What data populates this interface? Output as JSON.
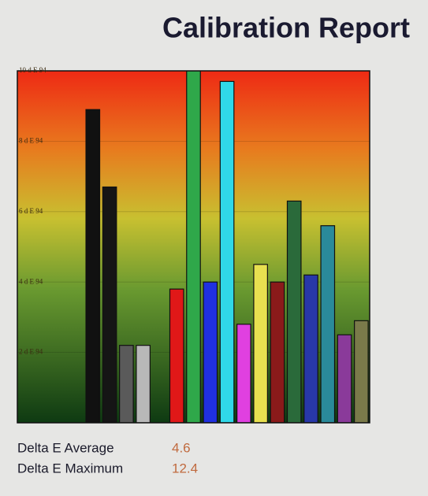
{
  "chart_data": {
    "type": "bar",
    "title": "Calibration Report",
    "categories": [
      null,
      null,
      null,
      null,
      null,
      null,
      null,
      null,
      null,
      null,
      null,
      null,
      null,
      null,
      null,
      null,
      null,
      null,
      null,
      null,
      null
    ],
    "values": [
      null,
      null,
      null,
      null,
      8.9,
      6.7,
      2.2,
      2.2,
      null,
      3.8,
      10,
      4.0,
      9.7,
      2.8,
      4.5,
      4.0,
      6.3,
      4.2,
      5.6,
      2.5,
      2.9
    ],
    "colors": [
      null,
      null,
      null,
      null,
      "#111111",
      "#151515",
      "#5a5a5a",
      "#b8b8b8",
      null,
      "#e01818",
      "#2fa84a",
      "#2030e0",
      "#30d8e8",
      "#e040e0",
      "#e8e050",
      "#8a1a1a",
      "#2a6a3a",
      "#2838a8",
      "#2a8a9a",
      "#8a3a9a",
      "#7a7a4a"
    ],
    "ylim": [
      0,
      10
    ],
    "yticks": [
      {
        "value": 2,
        "label": "2 d E 94"
      },
      {
        "value": 4,
        "label": "4 d E 94"
      },
      {
        "value": 6,
        "label": "6 d E 94"
      },
      {
        "value": 8,
        "label": "8 d E 94"
      },
      {
        "value": 10,
        "label": "10 d E 94"
      }
    ],
    "grid": true,
    "stats": [
      {
        "label": "Delta E Average",
        "value": 4.6
      },
      {
        "label": "Delta E Maximum",
        "value": 12.4
      }
    ]
  }
}
